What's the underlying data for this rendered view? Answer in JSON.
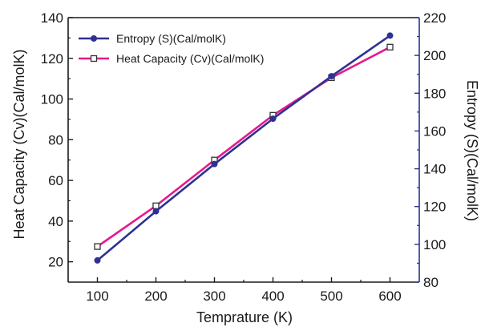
{
  "chart_data": {
    "type": "line",
    "title": "",
    "xlabel": "Temprature (K)",
    "ylabel_left": "Heat Capacity (Cv)(Cal/molK)",
    "ylabel_right": "Entropy (S)(Cal/molK)",
    "x": [
      100,
      200,
      300,
      400,
      500,
      600
    ],
    "xlim": [
      50,
      650
    ],
    "ylim_left": [
      10,
      140
    ],
    "ylim_right": [
      80,
      220
    ],
    "xticks": [
      "100",
      "200",
      "300",
      "400",
      "500",
      "600"
    ],
    "yticks_left": [
      "20",
      "40",
      "60",
      "80",
      "100",
      "120",
      "140"
    ],
    "yticks_right": [
      "80",
      "100",
      "120",
      "140",
      "160",
      "180",
      "200",
      "220"
    ],
    "series": [
      {
        "name": "Entropy (S)(Cal/molK)",
        "axis": "right",
        "color": "#2e3192",
        "marker": "filled-circle",
        "values": [
          91.5,
          117.5,
          142.5,
          166.5,
          189.0,
          210.5
        ]
      },
      {
        "name": "Heat Capacity (Cv)(Cal/molK)",
        "axis": "left",
        "color": "#e6198c",
        "marker": "open-square",
        "values": [
          27.5,
          47.5,
          70.0,
          92.0,
          110.5,
          125.5
        ]
      }
    ],
    "grid": false,
    "legend_position": "top-left",
    "right_axis_color": "#2e3192"
  }
}
